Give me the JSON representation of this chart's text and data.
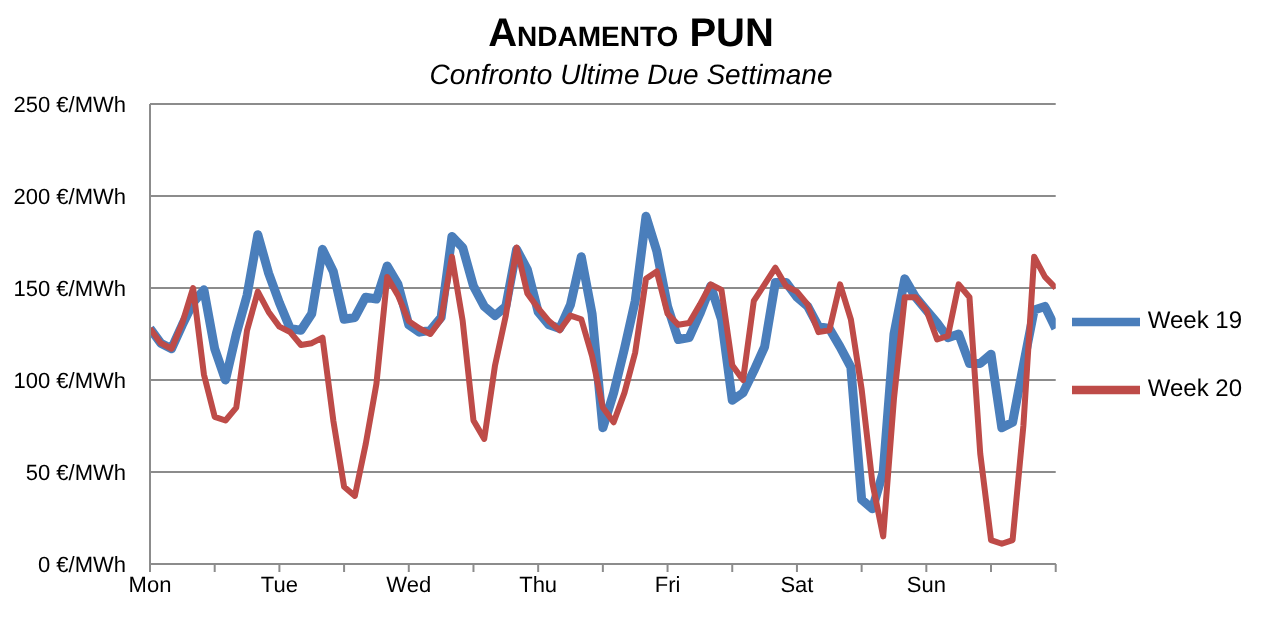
{
  "chart_data": {
    "type": "line",
    "title": "Andamento PUN",
    "subtitle": "Confronto Ultime Due Settimane",
    "categories": [
      "Mon",
      null,
      null,
      null,
      null,
      null,
      null,
      null,
      null,
      null,
      null,
      null,
      "Tue",
      null,
      null,
      null,
      null,
      null,
      null,
      null,
      null,
      null,
      null,
      null,
      "Wed",
      null,
      null,
      null,
      null,
      null,
      null,
      null,
      null,
      null,
      null,
      null,
      "Thu",
      null,
      null,
      null,
      null,
      null,
      null,
      null,
      null,
      null,
      null,
      null,
      "Fri",
      null,
      null,
      null,
      null,
      null,
      null,
      null,
      null,
      null,
      null,
      null,
      "Sat",
      null,
      null,
      null,
      null,
      null,
      null,
      null,
      null,
      null,
      null,
      null,
      "Sun",
      null,
      null,
      null,
      null,
      null,
      null,
      null,
      null,
      null,
      null,
      null,
      null
    ],
    "ylim": [
      0,
      250
    ],
    "yticks": [
      {
        "value": 0,
        "label": "0 €/MWh"
      },
      {
        "value": 50,
        "label": "50 €/MWh"
      },
      {
        "value": 100,
        "label": "100 €/MWh"
      },
      {
        "value": 150,
        "label": "150 €/MWh"
      },
      {
        "value": 200,
        "label": "200 €/MWh"
      },
      {
        "value": 250,
        "label": "250 €/MWh"
      }
    ],
    "grid": "y",
    "legend": "right",
    "marker": "none",
    "line_style": "solid",
    "series": [
      {
        "name": "Week 19",
        "color": "#4a7ebb",
        "values": [
          128,
          120,
          117,
          130,
          142,
          149,
          117,
          100,
          125,
          146,
          179,
          158,
          142,
          128,
          127,
          136,
          171,
          159,
          133,
          134,
          145,
          144,
          162,
          152,
          130,
          126,
          127,
          134,
          178,
          172,
          151,
          140,
          135,
          140,
          171,
          160,
          137,
          130,
          128,
          141,
          167,
          136,
          74,
          93,
          117,
          143,
          189,
          170,
          140,
          122,
          123,
          136,
          151,
          133,
          89,
          93,
          105,
          118,
          153,
          153,
          145,
          140,
          129,
          128,
          118,
          107,
          35,
          30,
          50,
          125,
          155,
          145,
          138,
          131,
          123,
          125,
          109,
          109,
          114,
          74,
          77,
          108,
          138,
          140,
          128
        ]
      },
      {
        "name": "Week 20",
        "color": "#be4b48",
        "values": [
          128,
          120,
          117,
          131,
          150,
          103,
          80,
          78,
          85,
          127,
          148,
          137,
          129,
          126,
          119,
          120,
          123,
          78,
          42,
          37,
          65,
          98,
          156,
          146,
          132,
          128,
          125,
          133,
          167,
          132,
          78,
          68,
          108,
          135,
          172,
          147,
          139,
          132,
          127,
          135,
          133,
          113,
          85,
          77,
          93,
          115,
          155,
          159,
          136,
          130,
          131,
          141,
          152,
          149,
          108,
          100,
          143,
          152,
          161,
          151,
          148,
          141,
          126,
          127,
          152,
          133,
          95,
          44,
          15,
          90,
          145,
          145,
          138,
          122,
          124,
          152,
          145,
          60,
          13,
          11,
          13,
          75,
          167,
          156,
          150
        ]
      }
    ]
  }
}
